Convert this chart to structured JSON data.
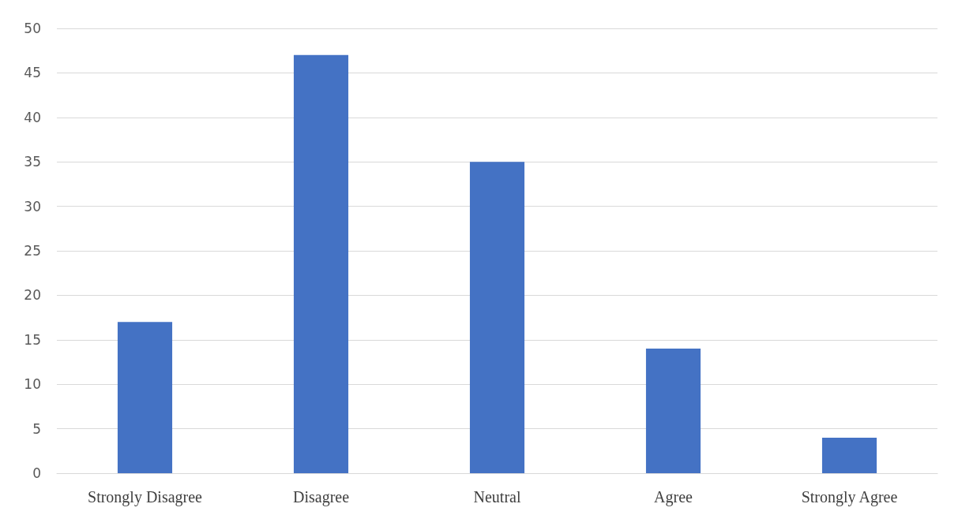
{
  "chart_data": {
    "type": "bar",
    "categories": [
      "Strongly Disagree",
      "Disagree",
      "Neutral",
      "Agree",
      "Strongly Agree"
    ],
    "values": [
      17,
      47,
      35,
      14,
      4
    ],
    "color": "#4472c4",
    "ylim": [
      0,
      50
    ],
    "yticks": [
      0,
      5,
      10,
      15,
      20,
      25,
      30,
      35,
      40,
      45,
      50
    ],
    "grid": "y"
  }
}
